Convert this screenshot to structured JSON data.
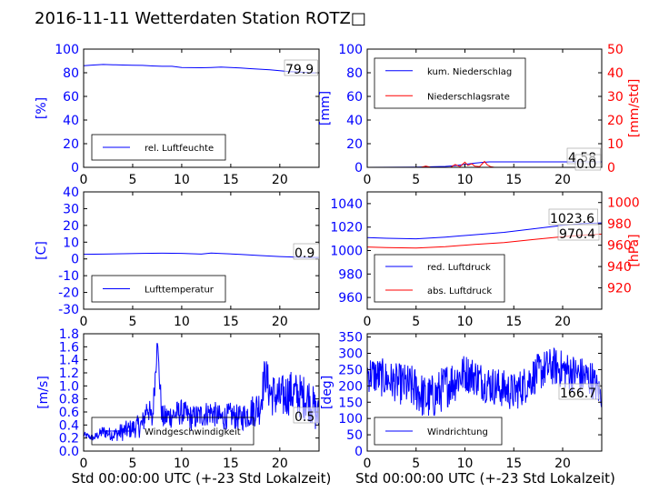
{
  "title": "2016-11-11 Wetterdaten Station ROTZ□",
  "xlabel": "Std 00:00:00 UTC (+-23 Std Lokalzeit)",
  "colors": {
    "blue": "#0000ff",
    "red": "#ff0000",
    "light_blue": "#6f6fff"
  },
  "chart_data": [
    {
      "id": "humidity",
      "type": "line",
      "xlim": [
        0,
        24
      ],
      "xticks": [
        0,
        5,
        10,
        15,
        20
      ],
      "ylim": [
        0,
        100
      ],
      "yticks": [
        0,
        20,
        40,
        60,
        80,
        100
      ],
      "ylabel": "[%]",
      "legend_loc": "lower-left",
      "value_label": "79.9",
      "series": [
        {
          "name": "rel. Luftfeuchte",
          "color": "#0000ff",
          "x": [
            0,
            1,
            2,
            3,
            4,
            5,
            6,
            7,
            8,
            9,
            10,
            11,
            12,
            13,
            14,
            15,
            16,
            17,
            18,
            19,
            20,
            21,
            22,
            23,
            24
          ],
          "y": [
            86,
            86.5,
            87,
            86.8,
            86.5,
            86.3,
            86.2,
            85.8,
            85.5,
            85.5,
            84.5,
            84.3,
            84.2,
            84.5,
            84.8,
            84.5,
            84,
            83.5,
            83,
            82.5,
            81.8,
            81,
            80.5,
            80,
            79.9
          ]
        }
      ]
    },
    {
      "id": "precipitation",
      "type": "line",
      "xlim": [
        0,
        24
      ],
      "xticks": [
        0,
        5,
        10,
        15,
        20
      ],
      "ylim": [
        0,
        100
      ],
      "yticks": [
        0,
        20,
        40,
        60,
        80,
        100
      ],
      "ylabel": "[mm]",
      "ylim2": [
        0,
        50
      ],
      "yticks2": [
        0,
        10,
        20,
        30,
        40,
        50
      ],
      "ylabel2": "[mm/std]",
      "legend_loc": "upper-left",
      "value_labels": [
        "4.58",
        "0.0"
      ],
      "series": [
        {
          "name": "kum. Niederschlag",
          "color": "#0000ff",
          "axis": "left",
          "x": [
            0,
            5,
            8,
            9,
            10,
            11,
            12,
            12.5,
            13,
            24
          ],
          "y": [
            0,
            0.2,
            0.8,
            1.5,
            2.5,
            3.5,
            4.3,
            4.58,
            4.58,
            4.58
          ]
        },
        {
          "name": "Niederschlagsrate",
          "color": "#ff0000",
          "axis": "right",
          "x": [
            0,
            5.5,
            6,
            6.5,
            8.5,
            9,
            9.5,
            10,
            10.3,
            10.7,
            11,
            11.5,
            12,
            12.3,
            12.6,
            13,
            24
          ],
          "y": [
            0,
            0,
            0.5,
            0,
            0,
            1.2,
            0.3,
            2.2,
            0.8,
            1.5,
            0.5,
            0.3,
            2.5,
            1.0,
            0.3,
            0,
            0
          ]
        }
      ]
    },
    {
      "id": "temperature",
      "type": "line",
      "xlim": [
        0,
        24
      ],
      "xticks": [
        0,
        5,
        10,
        15,
        20
      ],
      "ylim": [
        -30,
        40
      ],
      "yticks": [
        -30,
        -20,
        -10,
        0,
        10,
        20,
        30,
        40
      ],
      "ylabel": "[C]",
      "legend_loc": "lower-left",
      "value_label": "0.9",
      "series": [
        {
          "name": "Lufttemperatur",
          "color": "#0000ff",
          "x": [
            0,
            2,
            4,
            6,
            8,
            10,
            12,
            13,
            14,
            16,
            18,
            20,
            22,
            24
          ],
          "y": [
            2.8,
            2.9,
            3.1,
            3.3,
            3.4,
            3.3,
            2.9,
            3.5,
            3.2,
            2.7,
            2.0,
            1.4,
            1.0,
            0.9
          ]
        }
      ]
    },
    {
      "id": "pressure",
      "type": "line",
      "xlim": [
        0,
        24
      ],
      "xticks": [
        0,
        5,
        10,
        15,
        20
      ],
      "ylim": [
        950,
        1050
      ],
      "yticks": [
        960,
        980,
        1000,
        1020,
        1040
      ],
      "ylabel": "",
      "ylim2": [
        900,
        1010
      ],
      "yticks2": [
        920,
        940,
        960,
        980,
        1000
      ],
      "ylabel2": "[hPa]",
      "legend_loc": "lower-left",
      "value_labels": [
        "1023.6",
        "970.4"
      ],
      "series": [
        {
          "name": "red. Luftdruck",
          "color": "#0000ff",
          "axis": "left",
          "x": [
            0,
            2,
            5,
            8,
            11,
            14,
            17,
            20,
            22,
            24
          ],
          "y": [
            1011,
            1010.5,
            1010,
            1011.5,
            1013.5,
            1015.5,
            1018.5,
            1021.5,
            1023,
            1023.6
          ]
        },
        {
          "name": "abs. Luftdruck",
          "color": "#ff0000",
          "axis": "right",
          "x": [
            0,
            2,
            5,
            8,
            11,
            14,
            17,
            20,
            22,
            24
          ],
          "y": [
            958.3,
            957.7,
            957.3,
            958.7,
            960.7,
            962.5,
            965.3,
            968,
            969.4,
            970.4
          ]
        }
      ]
    },
    {
      "id": "windspeed",
      "type": "line",
      "xlim": [
        0,
        24
      ],
      "xticks": [
        0,
        5,
        10,
        15,
        20
      ],
      "ylim": [
        0,
        1.8
      ],
      "yticks": [
        0.0,
        0.2,
        0.4,
        0.6,
        0.8,
        1.0,
        1.2,
        1.4,
        1.6,
        1.8
      ],
      "ylabel": "[m/s]",
      "legend_loc": "lower-left",
      "value_label": "0.5",
      "series": [
        {
          "name": "Windgeschwindigkeit",
          "color": "#0000ff",
          "x": [
            0,
            1,
            2,
            3,
            4,
            5,
            6,
            6.5,
            7,
            7.5,
            8,
            9,
            10,
            11,
            12,
            13,
            14,
            15,
            16,
            17,
            18,
            18.5,
            19,
            20,
            21,
            22,
            23,
            24
          ],
          "y": [
            0.25,
            0.2,
            0.3,
            0.25,
            0.3,
            0.35,
            0.4,
            0.7,
            0.45,
            1.65,
            0.5,
            0.55,
            0.6,
            0.5,
            0.55,
            0.6,
            0.5,
            0.55,
            0.5,
            0.6,
            0.7,
            1.2,
            0.9,
            0.8,
            0.9,
            0.85,
            0.8,
            0.5
          ],
          "noise": [
            0.05,
            0.05,
            0.1,
            0.1,
            0.15,
            0.15,
            0.2,
            0.2,
            0.2,
            0.2,
            0.2,
            0.2,
            0.2,
            0.2,
            0.2,
            0.2,
            0.2,
            0.2,
            0.2,
            0.25,
            0.3,
            0.3,
            0.35,
            0.35,
            0.35,
            0.35,
            0.35,
            0.3
          ]
        }
      ]
    },
    {
      "id": "winddirection",
      "type": "line",
      "xlim": [
        0,
        24
      ],
      "xticks": [
        0,
        5,
        10,
        15,
        20
      ],
      "ylim": [
        0,
        360
      ],
      "yticks": [
        0,
        50,
        100,
        150,
        200,
        250,
        300,
        350
      ],
      "ylabel": "[deg]",
      "legend_loc": "lower-left",
      "value_label": "166.7",
      "series": [
        {
          "name": "Windrichtung",
          "color": "#0000ff",
          "x": [
            0,
            1,
            2,
            3,
            4,
            5,
            6,
            7,
            8,
            9,
            10,
            11,
            12,
            13,
            14,
            15,
            16,
            17,
            18,
            19,
            20,
            21,
            22,
            23,
            24
          ],
          "y": [
            240,
            230,
            220,
            210,
            200,
            190,
            160,
            170,
            200,
            220,
            240,
            230,
            210,
            200,
            190,
            180,
            200,
            230,
            250,
            260,
            250,
            240,
            230,
            220,
            166.7
          ],
          "noise": [
            60,
            60,
            60,
            60,
            70,
            70,
            70,
            70,
            70,
            70,
            60,
            60,
            60,
            60,
            60,
            60,
            60,
            60,
            60,
            60,
            60,
            60,
            60,
            60,
            40
          ]
        }
      ]
    }
  ]
}
